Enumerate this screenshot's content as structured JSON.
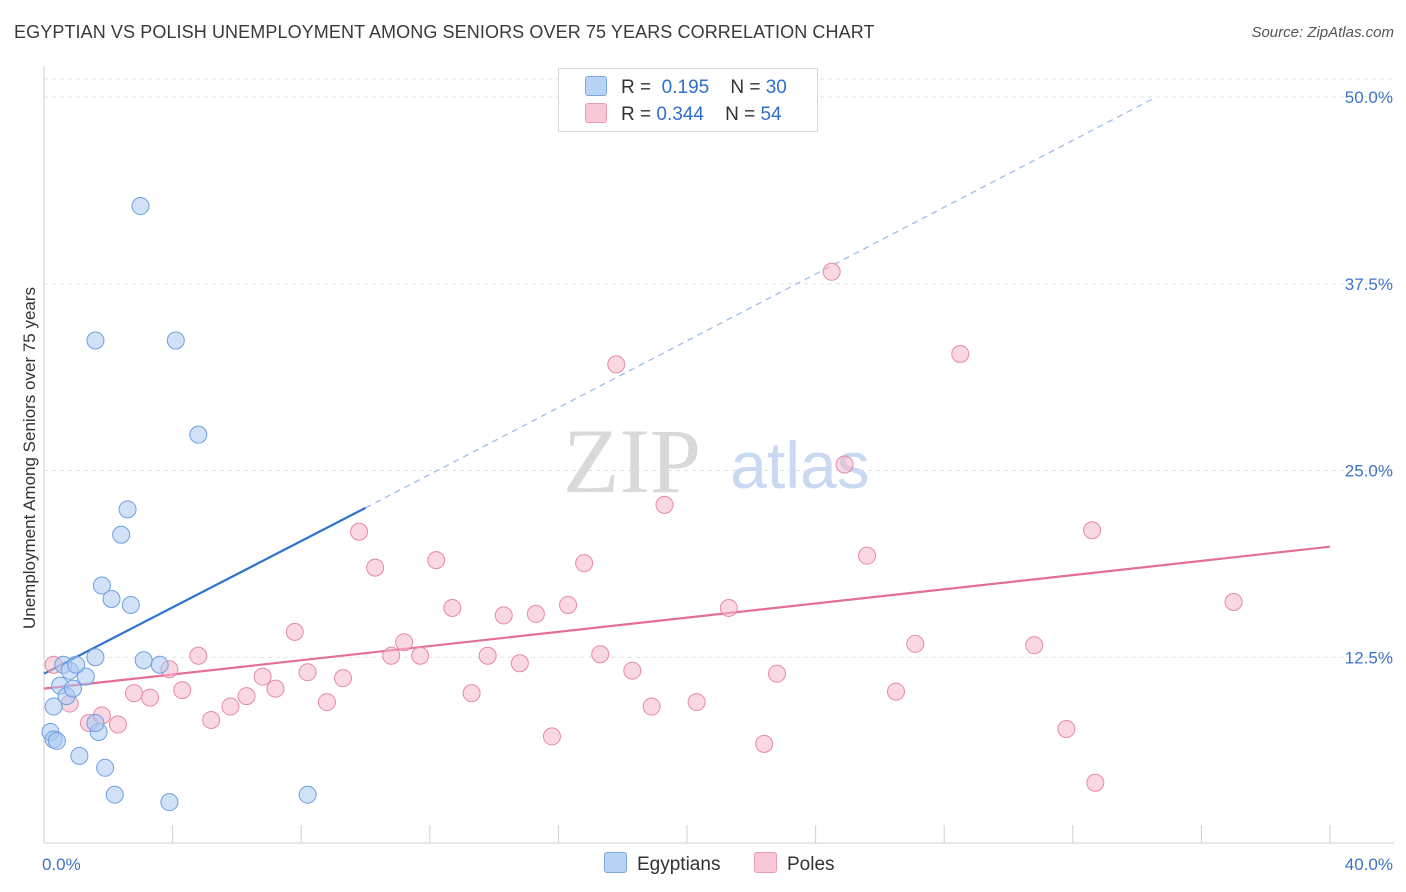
{
  "title": "EGYPTIAN VS POLISH UNEMPLOYMENT AMONG SENIORS OVER 75 YEARS CORRELATION CHART",
  "source": "Source: ZipAtlas.com",
  "watermark": {
    "zip": "ZIP",
    "atlas": "atlas"
  },
  "legend": {
    "r_label": "R =",
    "n_label": "N =",
    "rows": [
      {
        "r": "0.195",
        "n": "30",
        "color": "#a9c8f2"
      },
      {
        "r": "0.344",
        "n": "54",
        "color": "#f6b8cb"
      }
    ]
  },
  "chart_data": {
    "type": "scatter",
    "title": "EGYPTIAN VS POLISH UNEMPLOYMENT AMONG SENIORS OVER 75 YEARS CORRELATION CHART",
    "xlabel": "",
    "ylabel": "Unemployment Among Seniors over 75 years",
    "xlim": [
      0,
      40
    ],
    "ylim": [
      0,
      50
    ],
    "x_tick_labels": [
      "0.0%",
      "40.0%"
    ],
    "y_tick_labels": [
      "12.5%",
      "25.0%",
      "37.5%",
      "50.0%"
    ],
    "y_ticks": [
      12.5,
      25,
      37.5,
      50
    ],
    "grid": true,
    "series": [
      {
        "name": "Egyptians",
        "color": "#a9c8f2",
        "stroke": "#6f9fe0",
        "points": [
          [
            0.2,
            7.5
          ],
          [
            0.3,
            7.0
          ],
          [
            0.4,
            6.9
          ],
          [
            0.3,
            9.2
          ],
          [
            0.5,
            10.6
          ],
          [
            0.6,
            12.0
          ],
          [
            0.8,
            11.6
          ],
          [
            0.7,
            9.9
          ],
          [
            0.9,
            10.4
          ],
          [
            1.3,
            11.2
          ],
          [
            1.6,
            12.5
          ],
          [
            1.7,
            7.5
          ],
          [
            1.1,
            5.9
          ],
          [
            1.9,
            5.1
          ],
          [
            2.2,
            3.3
          ],
          [
            1.6,
            8.1
          ],
          [
            1.8,
            17.3
          ],
          [
            2.1,
            16.4
          ],
          [
            2.7,
            16.0
          ],
          [
            2.6,
            22.4
          ],
          [
            2.4,
            20.7
          ],
          [
            1.6,
            33.7
          ],
          [
            4.1,
            33.7
          ],
          [
            3.0,
            42.7
          ],
          [
            4.8,
            27.4
          ],
          [
            3.1,
            12.3
          ],
          [
            3.6,
            12.0
          ],
          [
            3.9,
            2.8
          ],
          [
            8.2,
            3.3
          ],
          [
            1.0,
            12.0
          ]
        ],
        "trend": {
          "x": [
            0,
            10
          ],
          "y": [
            11.4,
            22.5
          ],
          "dashed_to": [
            34.6,
            50.0
          ]
        }
      },
      {
        "name": "Poles",
        "color": "#f6b8cb",
        "stroke": "#e58aa7",
        "points": [
          [
            0.3,
            12.0
          ],
          [
            0.8,
            9.4
          ],
          [
            1.4,
            8.1
          ],
          [
            1.8,
            8.6
          ],
          [
            2.3,
            8.0
          ],
          [
            2.8,
            10.1
          ],
          [
            3.3,
            9.8
          ],
          [
            3.9,
            11.7
          ],
          [
            4.3,
            10.3
          ],
          [
            4.8,
            12.6
          ],
          [
            5.2,
            8.3
          ],
          [
            5.8,
            9.2
          ],
          [
            6.3,
            9.9
          ],
          [
            6.8,
            11.2
          ],
          [
            7.2,
            10.4
          ],
          [
            7.8,
            14.2
          ],
          [
            8.2,
            11.5
          ],
          [
            8.8,
            9.5
          ],
          [
            9.3,
            11.1
          ],
          [
            9.8,
            20.9
          ],
          [
            10.3,
            18.5
          ],
          [
            10.8,
            12.6
          ],
          [
            11.2,
            13.5
          ],
          [
            11.7,
            12.6
          ],
          [
            12.2,
            19.0
          ],
          [
            12.7,
            15.8
          ],
          [
            13.3,
            10.1
          ],
          [
            13.8,
            12.6
          ],
          [
            14.3,
            15.3
          ],
          [
            14.8,
            12.1
          ],
          [
            15.3,
            15.4
          ],
          [
            15.8,
            7.2
          ],
          [
            16.3,
            16.0
          ],
          [
            16.8,
            18.8
          ],
          [
            17.3,
            12.7
          ],
          [
            17.8,
            32.1
          ],
          [
            18.3,
            11.6
          ],
          [
            18.9,
            9.2
          ],
          [
            19.3,
            22.7
          ],
          [
            20.3,
            9.5
          ],
          [
            21.3,
            15.8
          ],
          [
            22.4,
            6.7
          ],
          [
            22.8,
            11.4
          ],
          [
            24.5,
            38.3
          ],
          [
            24.9,
            25.4
          ],
          [
            25.6,
            19.3
          ],
          [
            26.5,
            10.2
          ],
          [
            27.1,
            13.4
          ],
          [
            28.5,
            32.8
          ],
          [
            30.8,
            13.3
          ],
          [
            31.8,
            7.7
          ],
          [
            32.6,
            21.0
          ],
          [
            32.7,
            4.1
          ],
          [
            37.0,
            16.2
          ]
        ],
        "trend": {
          "x": [
            0,
            40
          ],
          "y": [
            10.4,
            19.9
          ]
        }
      }
    ]
  },
  "bottom_legend": [
    {
      "label": "Egyptians",
      "color": "#a9c8f2"
    },
    {
      "label": "Poles",
      "color": "#f6b8cb"
    }
  ]
}
